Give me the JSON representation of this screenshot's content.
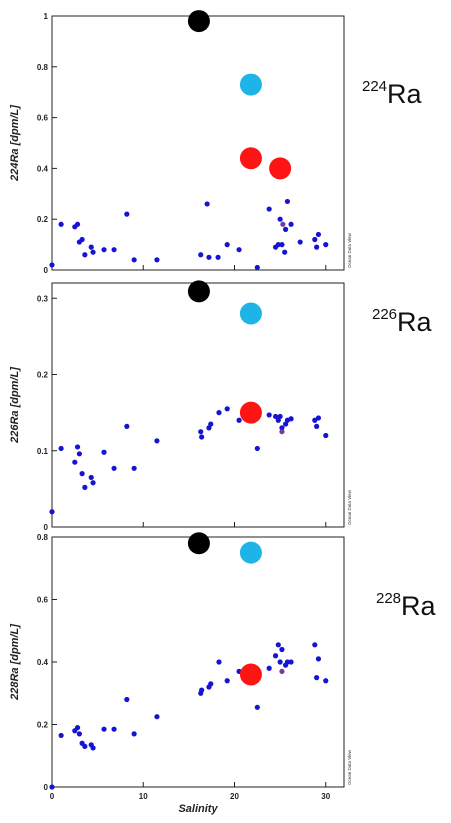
{
  "figure": {
    "watermark": "Ocean Data View",
    "x_axis_title": "Salinity"
  },
  "chart_data": [
    {
      "type": "scatter",
      "isotope_mass": "224",
      "isotope_symbol": "Ra",
      "ylabel": "224Ra [dpm/L]",
      "xlim": [
        0,
        32
      ],
      "ylim": [
        0,
        1
      ],
      "yticks": [
        "0",
        "0.2",
        "0.4",
        "0.6",
        "0.8",
        "1"
      ],
      "ytick_values": [
        0,
        0.2,
        0.4,
        0.6,
        0.8,
        1
      ],
      "series": [
        {
          "color": "#1414d2",
          "points": [
            [
              0,
              0.02
            ],
            [
              1,
              0.18
            ],
            [
              2.5,
              0.17
            ],
            [
              2.8,
              0.18
            ],
            [
              3.0,
              0.11
            ],
            [
              3.3,
              0.12
            ],
            [
              3.6,
              0.06
            ],
            [
              4.3,
              0.09
            ],
            [
              4.5,
              0.07
            ],
            [
              5.7,
              0.08
            ],
            [
              6.8,
              0.08
            ],
            [
              8.2,
              0.22
            ],
            [
              9.0,
              0.04
            ],
            [
              11.5,
              0.04
            ],
            [
              16.3,
              0.06
            ],
            [
              17.0,
              0.26
            ],
            [
              17.2,
              0.05
            ],
            [
              18.2,
              0.05
            ],
            [
              19.2,
              0.1
            ],
            [
              20.5,
              0.08
            ],
            [
              22.5,
              0.01
            ],
            [
              23.8,
              0.24
            ],
            [
              24.5,
              0.09
            ],
            [
              24.8,
              0.1
            ],
            [
              25.0,
              0.2
            ],
            [
              25.2,
              0.1
            ],
            [
              25.5,
              0.07
            ],
            [
              25.6,
              0.16
            ],
            [
              25.8,
              0.27
            ],
            [
              26.2,
              0.18
            ],
            [
              27.2,
              0.11
            ],
            [
              28.8,
              0.12
            ],
            [
              29.0,
              0.09
            ],
            [
              29.2,
              0.14
            ],
            [
              30.0,
              0.1
            ]
          ]
        },
        {
          "color": "#7a3a9a",
          "points": [
            [
              25.3,
              0.18
            ]
          ]
        }
      ],
      "markers": [
        {
          "color": "#000000",
          "x": 16.1,
          "y": 0.98
        },
        {
          "color": "#1eb4e8",
          "x": 21.8,
          "y": 0.73
        },
        {
          "color": "#ff1414",
          "x": 21.8,
          "y": 0.44
        },
        {
          "color": "#ff1414",
          "x": 25.0,
          "y": 0.4
        }
      ]
    },
    {
      "type": "scatter",
      "isotope_mass": "226",
      "isotope_symbol": "Ra",
      "ylabel": "226Ra [dpm/L]",
      "xlim": [
        0,
        32
      ],
      "ylim": [
        0,
        0.32
      ],
      "yticks": [
        "0",
        "0.1",
        "0.2",
        "0.3"
      ],
      "ytick_values": [
        0,
        0.1,
        0.2,
        0.3
      ],
      "series": [
        {
          "color": "#1414d2",
          "points": [
            [
              0,
              0.02
            ],
            [
              1,
              0.103
            ],
            [
              2.5,
              0.085
            ],
            [
              2.8,
              0.105
            ],
            [
              3.0,
              0.096
            ],
            [
              3.3,
              0.07
            ],
            [
              3.6,
              0.052
            ],
            [
              4.3,
              0.065
            ],
            [
              4.5,
              0.058
            ],
            [
              5.7,
              0.098
            ],
            [
              6.8,
              0.077
            ],
            [
              8.2,
              0.132
            ],
            [
              9.0,
              0.077
            ],
            [
              11.5,
              0.113
            ],
            [
              16.3,
              0.125
            ],
            [
              16.4,
              0.118
            ],
            [
              17.2,
              0.13
            ],
            [
              17.4,
              0.135
            ],
            [
              18.3,
              0.15
            ],
            [
              19.2,
              0.155
            ],
            [
              20.5,
              0.14
            ],
            [
              22.5,
              0.103
            ],
            [
              23.8,
              0.147
            ],
            [
              24.5,
              0.145
            ],
            [
              24.8,
              0.14
            ],
            [
              25.0,
              0.145
            ],
            [
              25.2,
              0.13
            ],
            [
              25.6,
              0.135
            ],
            [
              25.8,
              0.14
            ],
            [
              26.2,
              0.142
            ],
            [
              28.8,
              0.14
            ],
            [
              29.0,
              0.132
            ],
            [
              29.2,
              0.143
            ],
            [
              30.0,
              0.12
            ]
          ]
        },
        {
          "color": "#7a3a9a",
          "points": [
            [
              25.2,
              0.125
            ]
          ]
        }
      ],
      "markers": [
        {
          "color": "#000000",
          "x": 16.1,
          "y": 0.309
        },
        {
          "color": "#1eb4e8",
          "x": 21.8,
          "y": 0.28
        },
        {
          "color": "#ff1414",
          "x": 21.8,
          "y": 0.15
        }
      ]
    },
    {
      "type": "scatter",
      "isotope_mass": "228",
      "isotope_symbol": "Ra",
      "ylabel": "228Ra [dpm/L]",
      "xlabel": "Salinity",
      "xlim": [
        0,
        32
      ],
      "ylim": [
        0,
        0.8
      ],
      "xticks": [
        "0",
        "10",
        "20",
        "30"
      ],
      "xtick_values": [
        0,
        10,
        20,
        30
      ],
      "yticks": [
        "0",
        "0.2",
        "0.4",
        "0.6",
        "0.8"
      ],
      "ytick_values": [
        0,
        0.2,
        0.4,
        0.6,
        0.8
      ],
      "series": [
        {
          "color": "#1414d2",
          "points": [
            [
              0,
              0.0
            ],
            [
              1,
              0.165
            ],
            [
              2.5,
              0.18
            ],
            [
              2.8,
              0.19
            ],
            [
              3.0,
              0.17
            ],
            [
              3.3,
              0.14
            ],
            [
              3.6,
              0.13
            ],
            [
              4.3,
              0.135
            ],
            [
              4.5,
              0.125
            ],
            [
              5.7,
              0.185
            ],
            [
              6.8,
              0.185
            ],
            [
              8.2,
              0.28
            ],
            [
              9.0,
              0.17
            ],
            [
              11.5,
              0.225
            ],
            [
              16.3,
              0.3
            ],
            [
              16.4,
              0.31
            ],
            [
              17.2,
              0.32
            ],
            [
              17.4,
              0.33
            ],
            [
              18.3,
              0.4
            ],
            [
              19.2,
              0.34
            ],
            [
              20.5,
              0.37
            ],
            [
              22.5,
              0.255
            ],
            [
              23.8,
              0.38
            ],
            [
              24.5,
              0.42
            ],
            [
              24.8,
              0.455
            ],
            [
              25.0,
              0.4
            ],
            [
              25.2,
              0.44
            ],
            [
              25.6,
              0.39
            ],
            [
              25.8,
              0.4
            ],
            [
              26.2,
              0.4
            ],
            [
              28.8,
              0.455
            ],
            [
              29.0,
              0.35
            ],
            [
              29.2,
              0.41
            ],
            [
              30.0,
              0.34
            ]
          ]
        },
        {
          "color": "#7a3a9a",
          "points": [
            [
              25.2,
              0.37
            ]
          ]
        }
      ],
      "markers": [
        {
          "color": "#000000",
          "x": 16.1,
          "y": 0.78
        },
        {
          "color": "#1eb4e8",
          "x": 21.8,
          "y": 0.75
        },
        {
          "color": "#ff1414",
          "x": 21.8,
          "y": 0.36
        }
      ]
    }
  ]
}
